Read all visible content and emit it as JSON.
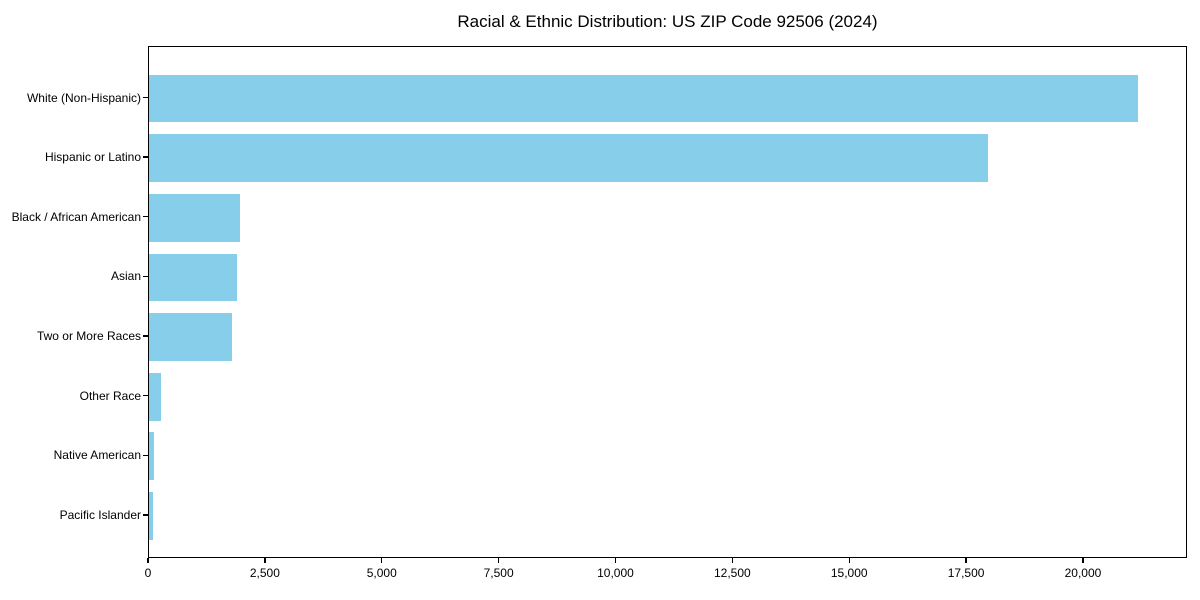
{
  "figure": {
    "background": "#ffffff"
  },
  "chart_data": {
    "type": "bar",
    "orientation": "horizontal",
    "title": "Racial & Ethnic Distribution: US ZIP Code 92506 (2024)",
    "categories": [
      "White (Non-Hispanic)",
      "Hispanic or Latino",
      "Black / African American",
      "Asian",
      "Two or More Races",
      "Other Race",
      "Native American",
      "Pacific Islander"
    ],
    "values": [
      21150,
      17950,
      1950,
      1890,
      1775,
      260,
      110,
      90
    ],
    "bar_color": "#87CEEB",
    "xlabel": "",
    "ylabel": "",
    "xlim": [
      0,
      22225
    ],
    "x_ticks": [
      0,
      2500,
      5000,
      7500,
      10000,
      12500,
      15000,
      17500,
      20000
    ],
    "x_tick_labels": [
      "0",
      "2,500",
      "5,000",
      "7,500",
      "10,000",
      "12,500",
      "15,000",
      "17,500",
      "20,000"
    ],
    "grid": false,
    "legend": false,
    "axis_color": "#000000",
    "text_color": "#000000"
  }
}
